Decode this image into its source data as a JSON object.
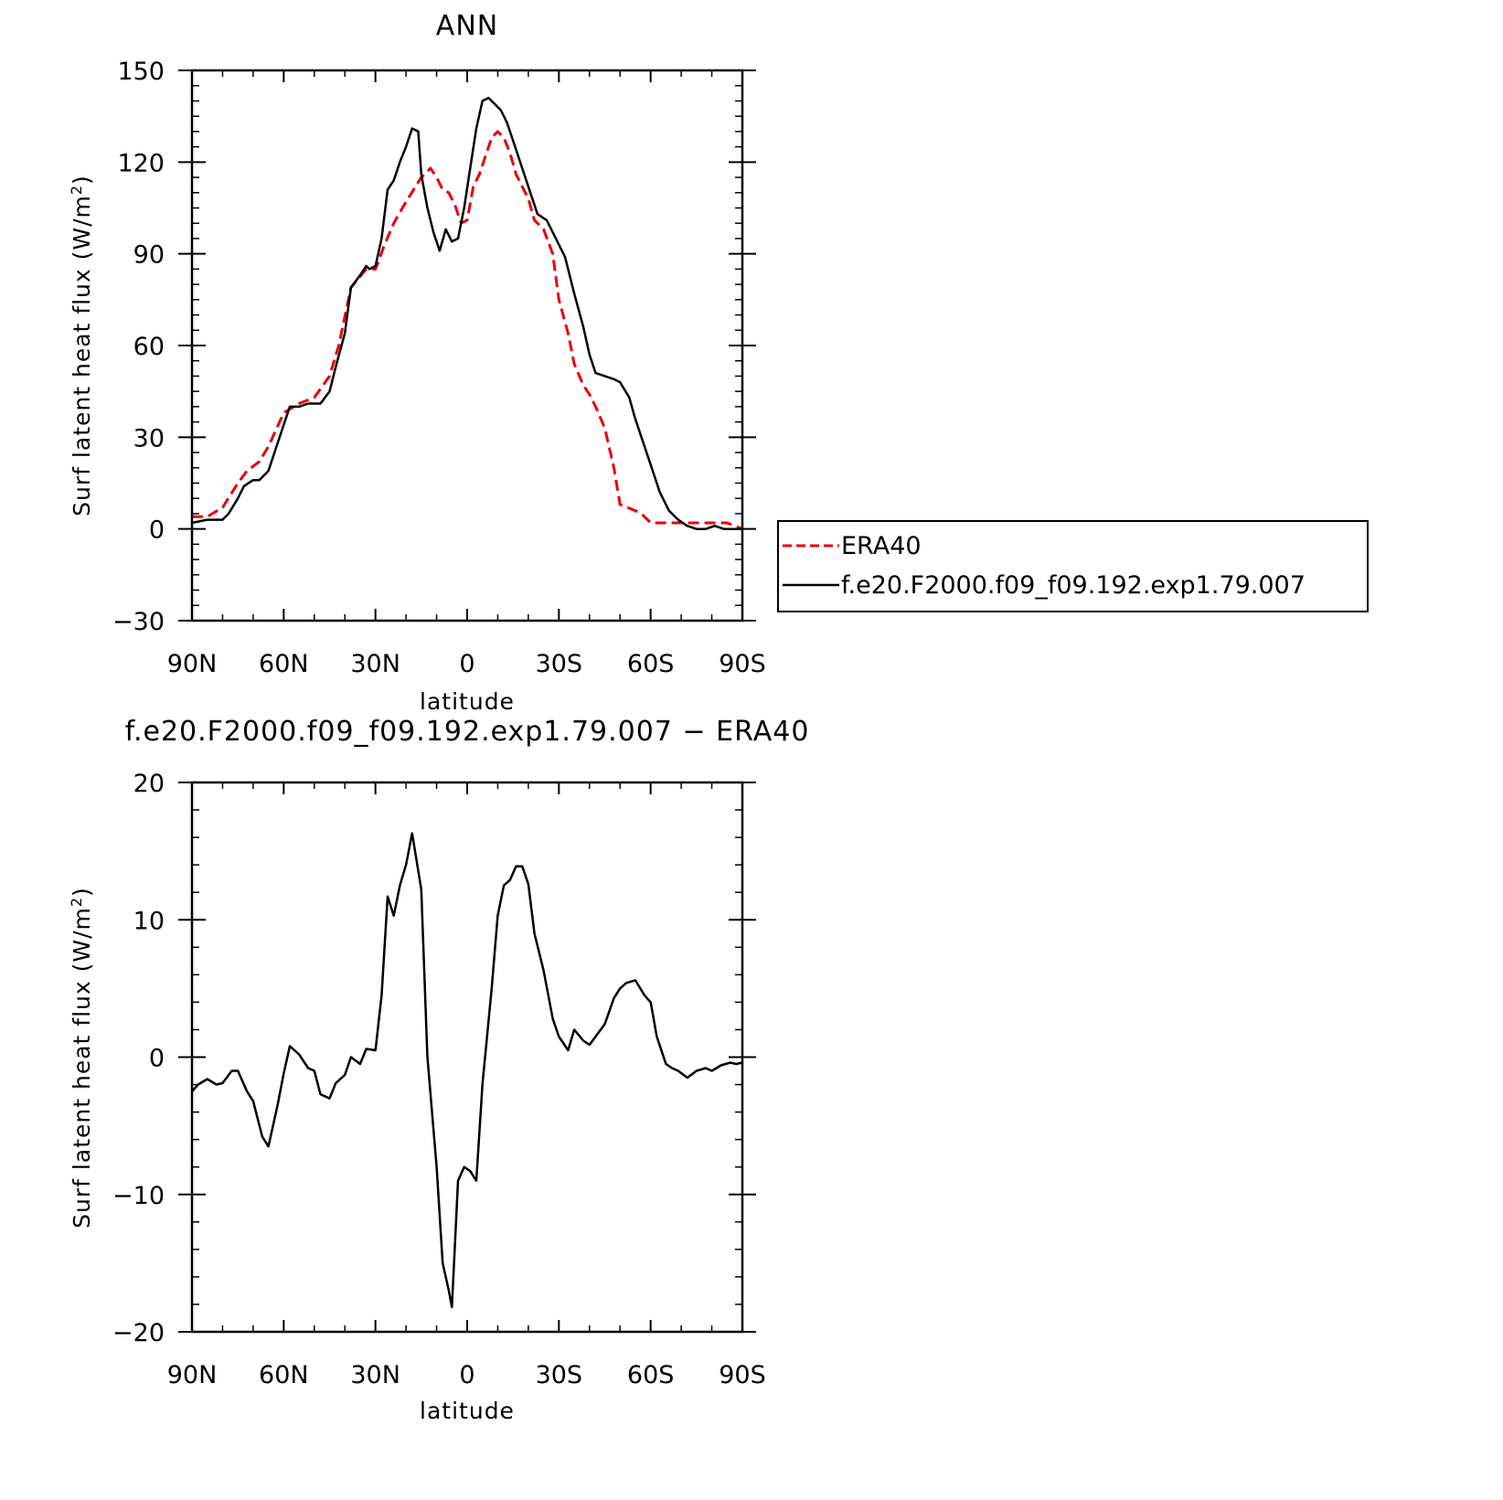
{
  "chart_data": [
    {
      "type": "line",
      "title": "ANN",
      "xlabel": "latitude",
      "ylabel": "Surf latent heat flux (W/m²)",
      "ylabel_parts": {
        "main": "Surf latent heat flux (W/m",
        "sup": "2",
        "end": ")"
      },
      "xlim": [
        90,
        -90
      ],
      "ylim": [
        -30,
        150
      ],
      "x_ticks": [
        90,
        60,
        30,
        0,
        -30,
        -60,
        -90
      ],
      "x_tick_labels": [
        "90N",
        "60N",
        "30N",
        "0",
        "30S",
        "60S",
        "90S"
      ],
      "y_ticks": [
        -30,
        0,
        30,
        60,
        90,
        120,
        150
      ],
      "y_tick_labels": [
        "−30",
        "0",
        "30",
        "60",
        "90",
        "120",
        "150"
      ],
      "legend": {
        "position": "right"
      },
      "series": [
        {
          "name": "ERA40",
          "color": "#e8000b",
          "style": "dashed",
          "x": [
            90,
            85,
            80,
            75,
            72,
            68,
            65,
            60,
            55,
            50,
            45,
            42,
            38,
            33,
            30,
            27,
            24,
            20,
            15,
            12,
            10,
            8,
            6,
            4,
            2,
            0,
            -2,
            -4,
            -6,
            -8,
            -10,
            -12,
            -14,
            -16,
            -18,
            -20,
            -22,
            -25,
            -28,
            -30,
            -33,
            -35,
            -38,
            -40,
            -42,
            -45,
            -48,
            -50,
            -55,
            -57,
            -60,
            -65,
            -70,
            -75,
            -80,
            -85,
            -90
          ],
          "y": [
            4,
            4,
            7,
            15,
            19,
            22,
            27,
            38,
            41,
            43,
            50,
            60,
            79,
            85,
            85,
            93,
            100,
            107,
            115,
            118,
            115,
            111,
            110,
            106,
            100,
            101,
            112,
            116,
            122,
            128,
            130,
            128,
            123,
            116,
            112,
            108,
            101,
            98,
            90,
            75,
            64,
            54,
            47,
            44,
            40,
            33,
            20,
            8,
            6,
            5,
            2,
            2,
            2,
            2,
            2,
            2,
            0
          ]
        },
        {
          "name": "f.e20.F2000.f09_f09.192.exp1.79.007",
          "color": "#000000",
          "style": "solid",
          "x": [
            90,
            85,
            80,
            78,
            75,
            73,
            70,
            68,
            65,
            62,
            58,
            55,
            52,
            50,
            48,
            45,
            43,
            40,
            38,
            35,
            33,
            32,
            30,
            28,
            26,
            24,
            22,
            20,
            18,
            16,
            15,
            13,
            11,
            9,
            7,
            5,
            3,
            1,
            -1,
            -3,
            -5,
            -7,
            -9,
            -11,
            -13,
            -15,
            -17,
            -20,
            -23,
            -26,
            -29,
            -32,
            -35,
            -38,
            -40,
            -42,
            -45,
            -48,
            -50,
            -53,
            -55,
            -57,
            -60,
            -63,
            -66,
            -69,
            -72,
            -75,
            -78,
            -81,
            -84,
            -87,
            -90
          ],
          "y": [
            2,
            3,
            3,
            5,
            10,
            14,
            16,
            16,
            19,
            28,
            40,
            40,
            41,
            41,
            41,
            45,
            53,
            64,
            79,
            83,
            86,
            85,
            86,
            95,
            111,
            114,
            120,
            125,
            131,
            130,
            116,
            105,
            97,
            91,
            98,
            94,
            95,
            105,
            118,
            131,
            140,
            141,
            139,
            137,
            133,
            127,
            121,
            112,
            103,
            101,
            95,
            89,
            77,
            66,
            57,
            51,
            50,
            49,
            48,
            43,
            36,
            30,
            21,
            12,
            6,
            3,
            1,
            0,
            0,
            1,
            0,
            0,
            0
          ]
        }
      ]
    },
    {
      "type": "line",
      "title": "f.e20.F2000.f09_f09.192.exp1.79.007 − ERA40",
      "xlabel": "latitude",
      "ylabel": "Surf latent heat flux (W/m²)",
      "ylabel_parts": {
        "main": "Surf latent heat flux (W/m",
        "sup": "2",
        "end": ")"
      },
      "xlim": [
        90,
        -90
      ],
      "ylim": [
        -20,
        20
      ],
      "x_ticks": [
        90,
        60,
        30,
        0,
        -30,
        -60,
        -90
      ],
      "x_tick_labels": [
        "90N",
        "60N",
        "30N",
        "0",
        "30S",
        "60S",
        "90S"
      ],
      "y_ticks": [
        -20,
        -10,
        0,
        10,
        20
      ],
      "y_tick_labels": [
        "−20",
        "−10",
        "0",
        "10",
        "20"
      ],
      "series": [
        {
          "color": "#000000",
          "style": "solid",
          "x": [
            90,
            88,
            85,
            82,
            80,
            77,
            75,
            72,
            70,
            67,
            65,
            62,
            60,
            58,
            55,
            52,
            50,
            48,
            45,
            43,
            40,
            38,
            35,
            33,
            30,
            28,
            26,
            24,
            22,
            20,
            18,
            15,
            13,
            10,
            8,
            6,
            5,
            3,
            1,
            -1,
            -3,
            -5,
            -8,
            -10,
            -12,
            -14,
            -16,
            -18,
            -20,
            -22,
            -25,
            -28,
            -30,
            -33,
            -35,
            -38,
            -40,
            -43,
            -45,
            -48,
            -50,
            -52,
            -55,
            -58,
            -60,
            -62,
            -65,
            -67,
            -69,
            -72,
            -75,
            -78,
            -80,
            -83,
            -86,
            -88,
            -90
          ],
          "y": [
            -2.5,
            -2,
            -1.6,
            -2,
            -1.9,
            -1,
            -1,
            -2.5,
            -3.2,
            -5.8,
            -6.5,
            -3.5,
            -1.2,
            0.8,
            0.2,
            -0.8,
            -1,
            -2.7,
            -3,
            -1.9,
            -1.3,
            0,
            -0.5,
            0.6,
            0.5,
            4.5,
            11.7,
            10.3,
            12.5,
            14,
            16.3,
            12.2,
            0,
            -8,
            -15,
            -17,
            -18.2,
            -9,
            -8,
            -8.3,
            -9,
            -2,
            5,
            10.3,
            12.5,
            12.9,
            13.9,
            13.9,
            12.6,
            9,
            6.3,
            2.8,
            1.5,
            0.5,
            2,
            1.2,
            0.9,
            1.8,
            2.4,
            4.3,
            5,
            5.4,
            5.6,
            4.5,
            4,
            1.5,
            -0.5,
            -0.8,
            -1,
            -1.5,
            -1,
            -0.8,
            -1,
            -0.6,
            -0.4,
            -0.5,
            -0.4
          ]
        }
      ]
    }
  ]
}
